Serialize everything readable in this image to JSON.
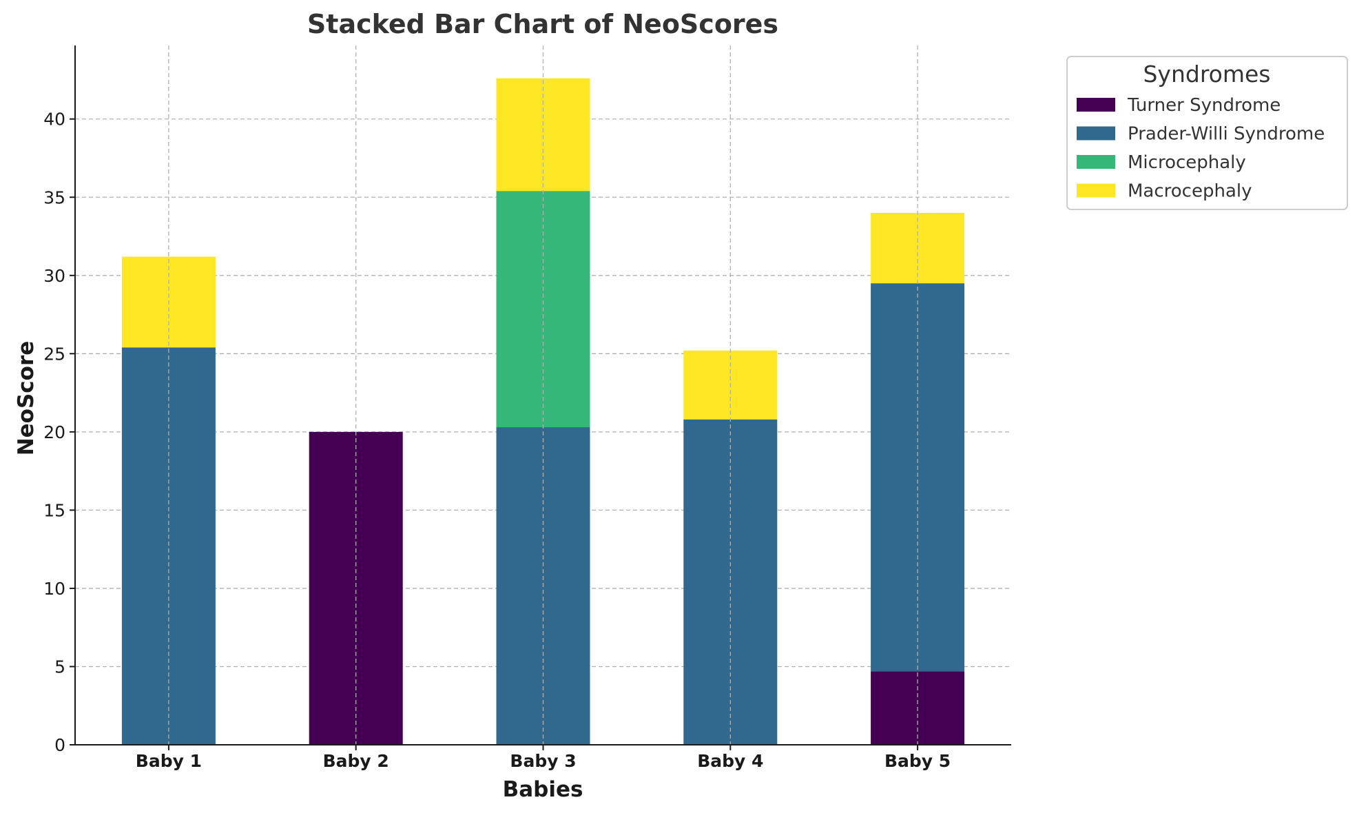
{
  "chart_data": {
    "type": "bar",
    "stacked": true,
    "title": "Stacked Bar Chart of NeoScores",
    "xlabel": "Babies",
    "ylabel": "NeoScore",
    "categories": [
      "Baby 1",
      "Baby 2",
      "Baby 3",
      "Baby 4",
      "Baby 5"
    ],
    "ylim": [
      0,
      44.7
    ],
    "yticks": [
      0,
      5,
      10,
      15,
      20,
      25,
      30,
      35,
      40
    ],
    "grid": true,
    "legend": {
      "title": "Syndromes",
      "placement": "outside top-right"
    },
    "series": [
      {
        "name": "Turner Syndrome",
        "color": "#440154",
        "values": [
          0,
          20.0,
          0,
          0,
          4.7
        ]
      },
      {
        "name": "Prader-Willi Syndrome",
        "color": "#31688e",
        "values": [
          25.4,
          0,
          20.3,
          20.8,
          24.8
        ]
      },
      {
        "name": "Microcephaly",
        "color": "#35b779",
        "values": [
          0,
          0,
          15.1,
          0,
          0
        ]
      },
      {
        "name": "Macrocephaly",
        "color": "#fde725",
        "values": [
          5.8,
          0,
          7.2,
          4.4,
          4.5
        ]
      }
    ]
  }
}
